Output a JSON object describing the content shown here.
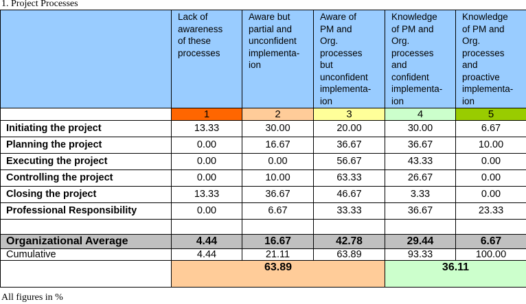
{
  "title": "1. Project Processes",
  "footnote": "All figures in %",
  "columns": [
    {
      "header": "Lack of\nawareness\nof these\nprocesses",
      "level": "1",
      "color": "#ff6600"
    },
    {
      "header": "Aware but\npartial and\nunconfident\nimplementa-\nion",
      "level": "2",
      "color": "#ffcc99"
    },
    {
      "header": "Aware of\nPM and\nOrg.\nprocesses\nbut\nunconfident\nimplementa-\nion",
      "level": "3",
      "color": "#ffff99"
    },
    {
      "header": "Knowledge\nof PM and\nOrg.\nprocesses\nand\nconfident\nimplementa-\nion",
      "level": "4",
      "color": "#ccffcc"
    },
    {
      "header": "Knowledge\nof PM and\nOrg.\nprocesses\nand\nproactive\nimplementa-\nion",
      "level": "5",
      "color": "#99cc00"
    }
  ],
  "rows": [
    {
      "label": "Initiating the project",
      "values": [
        "13.33",
        "30.00",
        "20.00",
        "30.00",
        "6.67"
      ]
    },
    {
      "label": "Planning the project",
      "values": [
        "0.00",
        "16.67",
        "36.67",
        "36.67",
        "10.00"
      ]
    },
    {
      "label": "Executing the project",
      "values": [
        "0.00",
        "0.00",
        "56.67",
        "43.33",
        "0.00"
      ]
    },
    {
      "label": "Controlling the project",
      "values": [
        "0.00",
        "10.00",
        "63.33",
        "26.67",
        "0.00"
      ]
    },
    {
      "label": "Closing the project",
      "values": [
        "13.33",
        "36.67",
        "46.67",
        "3.33",
        "0.00"
      ]
    },
    {
      "label": "Professional Responsibility",
      "values": [
        "0.00",
        "6.67",
        "33.33",
        "36.67",
        "23.33"
      ]
    }
  ],
  "average": {
    "label": "Organizational Average",
    "values": [
      "4.44",
      "16.67",
      "42.78",
      "29.44",
      "6.67"
    ]
  },
  "cumulative": {
    "label": "Cumulative",
    "values": [
      "4.44",
      "21.11",
      "63.89",
      "93.33",
      "100.00"
    ]
  },
  "totals": [
    {
      "value": "63.89",
      "color": "#ffcc99"
    },
    {
      "value": "36.11",
      "color": "#ccffcc"
    }
  ]
}
